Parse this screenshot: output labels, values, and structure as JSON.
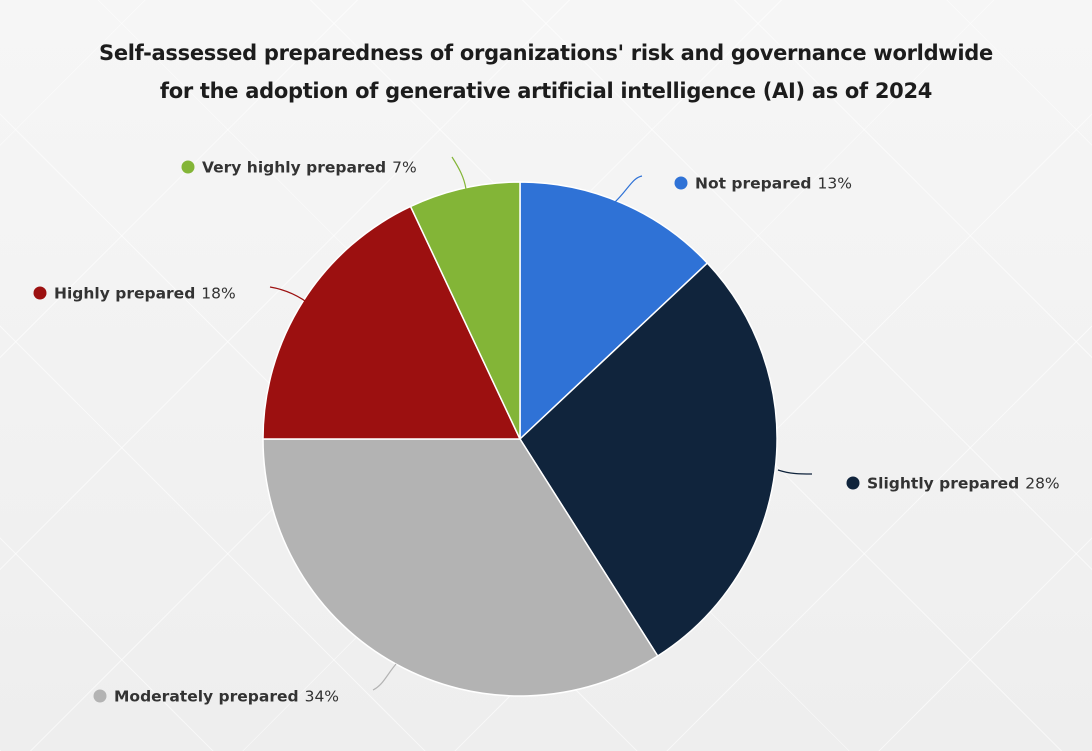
{
  "chart_data": {
    "type": "pie",
    "title_lines": [
      "Self-assessed preparedness of organizations' risk and governance worldwide",
      "for the adoption of generative artificial intelligence (AI) as of 2024"
    ],
    "unit": "%",
    "slices": [
      {
        "label": "Not prepared",
        "value": 13,
        "value_label": "13%",
        "color": "#2f72d6"
      },
      {
        "label": "Slightly prepared",
        "value": 28,
        "value_label": "28%",
        "color": "#10243c"
      },
      {
        "label": "Moderately prepared",
        "value": 34,
        "value_label": "34%",
        "color": "#b3b3b3"
      },
      {
        "label": "Highly prepared",
        "value": 18,
        "value_label": "18%",
        "color": "#9c1010"
      },
      {
        "label": "Very highly prepared",
        "value": 7,
        "value_label": "7%",
        "color": "#83b537"
      }
    ],
    "start_angle_deg": 0,
    "direction": "clockwise",
    "legend": "data-labels"
  }
}
